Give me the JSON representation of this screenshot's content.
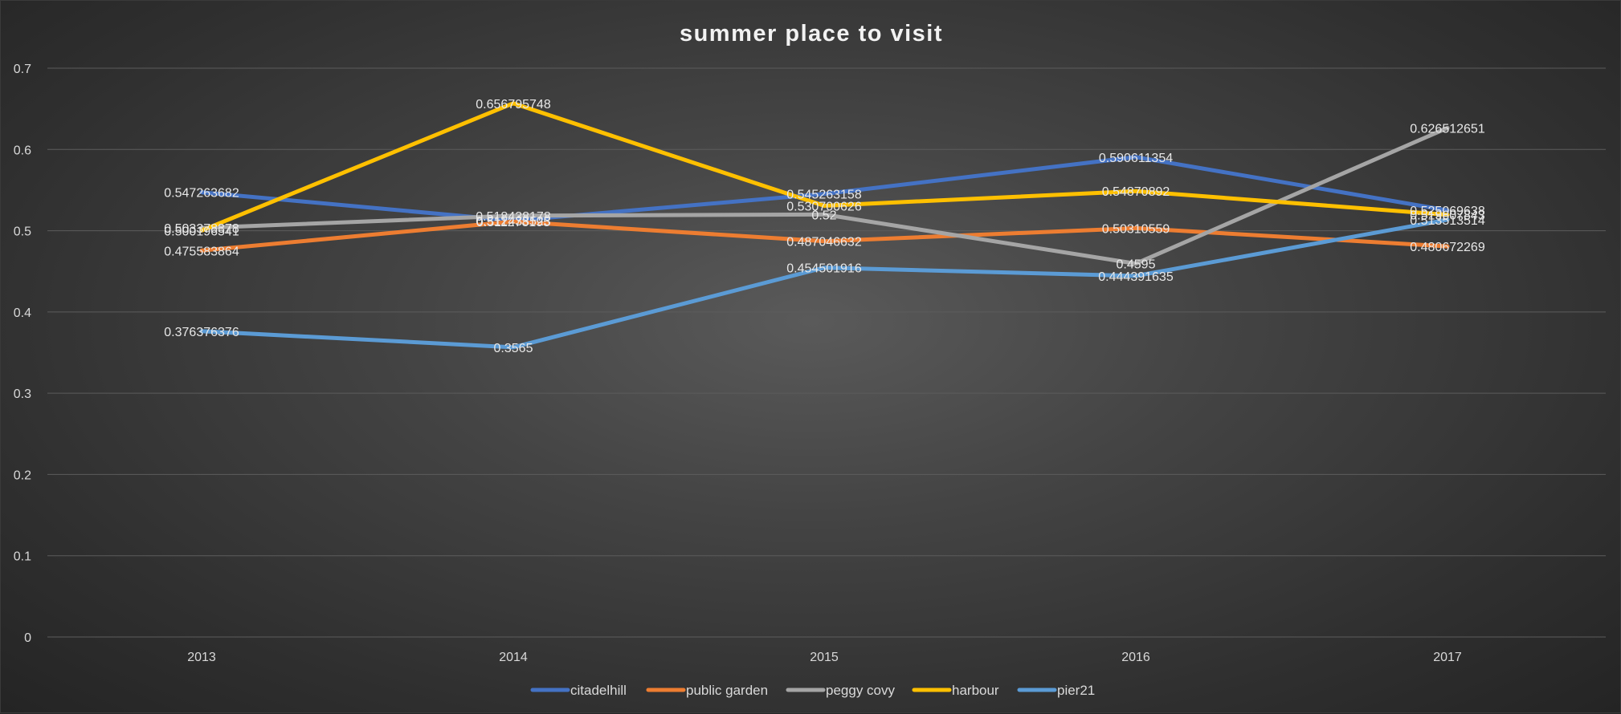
{
  "chart_data": {
    "type": "line",
    "title": "summer place to visit",
    "categories": [
      "2013",
      "2014",
      "2015",
      "2016",
      "2017"
    ],
    "ylim": [
      0,
      0.7
    ],
    "yticks": [
      "0",
      "0.1",
      "0.2",
      "0.3",
      "0.4",
      "0.5",
      "0.6",
      "0.7"
    ],
    "grid": true,
    "legend_position": "bottom",
    "series": [
      {
        "name": "citadelhill",
        "color": "#4472C4",
        "values": [
          0.547263682,
          0.512433523,
          0.545263158,
          0.590611354,
          0.525069638
        ],
        "labels": [
          "0.547263682",
          "0.512433523",
          "0.545263158",
          "0.590611354",
          "0.525069638"
        ]
      },
      {
        "name": "public garden",
        "color": "#ED7D31",
        "values": [
          0.475583864,
          0.511278195,
          0.487046632,
          0.50310559,
          0.480672269
        ],
        "labels": [
          "0.475583864",
          "0.511278195",
          "0.487046632",
          "0.50310559",
          "0.480672269"
        ]
      },
      {
        "name": "peggy covy",
        "color": "#A5A5A5",
        "values": [
          0.503378378,
          0.518438178,
          0.52,
          0.4595,
          0.626512651
        ],
        "labels": [
          "0.503378378",
          "0.518438178",
          "0.52",
          "0.4595",
          "0.626512651"
        ]
      },
      {
        "name": "harbour",
        "color": "#FFC000",
        "values": [
          0.500196541,
          0.656795748,
          0.530700626,
          0.54870892,
          0.519607843
        ],
        "labels": [
          "0.500196541",
          "0.656795748",
          "0.530700626",
          "0.54870892",
          "0.519607843"
        ]
      },
      {
        "name": "pier21",
        "color": "#5B9BD5",
        "values": [
          0.376376376,
          0.3565,
          0.454501916,
          0.444391635,
          0.513513514
        ],
        "labels": [
          "0.376376376",
          "0.3565",
          "0.454501916",
          "0.444391635",
          "0.513513514"
        ]
      }
    ]
  }
}
